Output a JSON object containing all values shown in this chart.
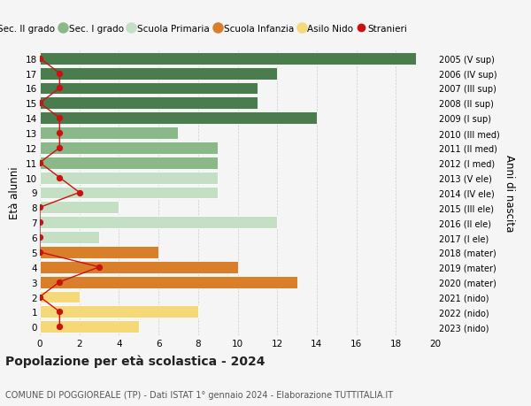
{
  "ages": [
    18,
    17,
    16,
    15,
    14,
    13,
    12,
    11,
    10,
    9,
    8,
    7,
    6,
    5,
    4,
    3,
    2,
    1,
    0
  ],
  "right_labels": [
    "2005 (V sup)",
    "2006 (IV sup)",
    "2007 (III sup)",
    "2008 (II sup)",
    "2009 (I sup)",
    "2010 (III med)",
    "2011 (II med)",
    "2012 (I med)",
    "2013 (V ele)",
    "2014 (IV ele)",
    "2015 (III ele)",
    "2016 (II ele)",
    "2017 (I ele)",
    "2018 (mater)",
    "2019 (mater)",
    "2020 (mater)",
    "2021 (nido)",
    "2022 (nido)",
    "2023 (nido)"
  ],
  "bar_values": [
    19,
    12,
    11,
    11,
    14,
    7,
    9,
    9,
    9,
    9,
    4,
    12,
    3,
    6,
    10,
    13,
    2,
    8,
    5
  ],
  "bar_colors": [
    "#4a7c4e",
    "#4a7c4e",
    "#4a7c4e",
    "#4a7c4e",
    "#4a7c4e",
    "#8ab888",
    "#8ab888",
    "#8ab888",
    "#c5dfc5",
    "#c5dfc5",
    "#c5dfc5",
    "#c5dfc5",
    "#c5dfc5",
    "#d97f2a",
    "#d97f2a",
    "#d97f2a",
    "#f5d878",
    "#f5d878",
    "#f5d878"
  ],
  "stranieri_values": [
    0,
    1,
    1,
    0,
    1,
    1,
    1,
    0,
    1,
    2,
    0,
    0,
    0,
    0,
    3,
    1,
    0,
    1,
    1
  ],
  "stranieri_color": "#cc1111",
  "ylabel": "Età alunni",
  "right_ylabel": "Anni di nascita",
  "title": "Popolazione per età scolastica - 2024",
  "subtitle": "COMUNE DI POGGIOREALE (TP) - Dati ISTAT 1° gennaio 2024 - Elaborazione TUTTITALIA.IT",
  "xlim": [
    0,
    20
  ],
  "xticks": [
    0,
    2,
    4,
    6,
    8,
    10,
    12,
    14,
    16,
    18,
    20
  ],
  "legend_labels": [
    "Sec. II grado",
    "Sec. I grado",
    "Scuola Primaria",
    "Scuola Infanzia",
    "Asilo Nido",
    "Stranieri"
  ],
  "legend_colors": [
    "#4a7c4e",
    "#8ab888",
    "#c5dfc5",
    "#d97f2a",
    "#f5d878",
    "#cc1111"
  ],
  "bg_color": "#f5f5f5",
  "grid_color": "#cccccc"
}
